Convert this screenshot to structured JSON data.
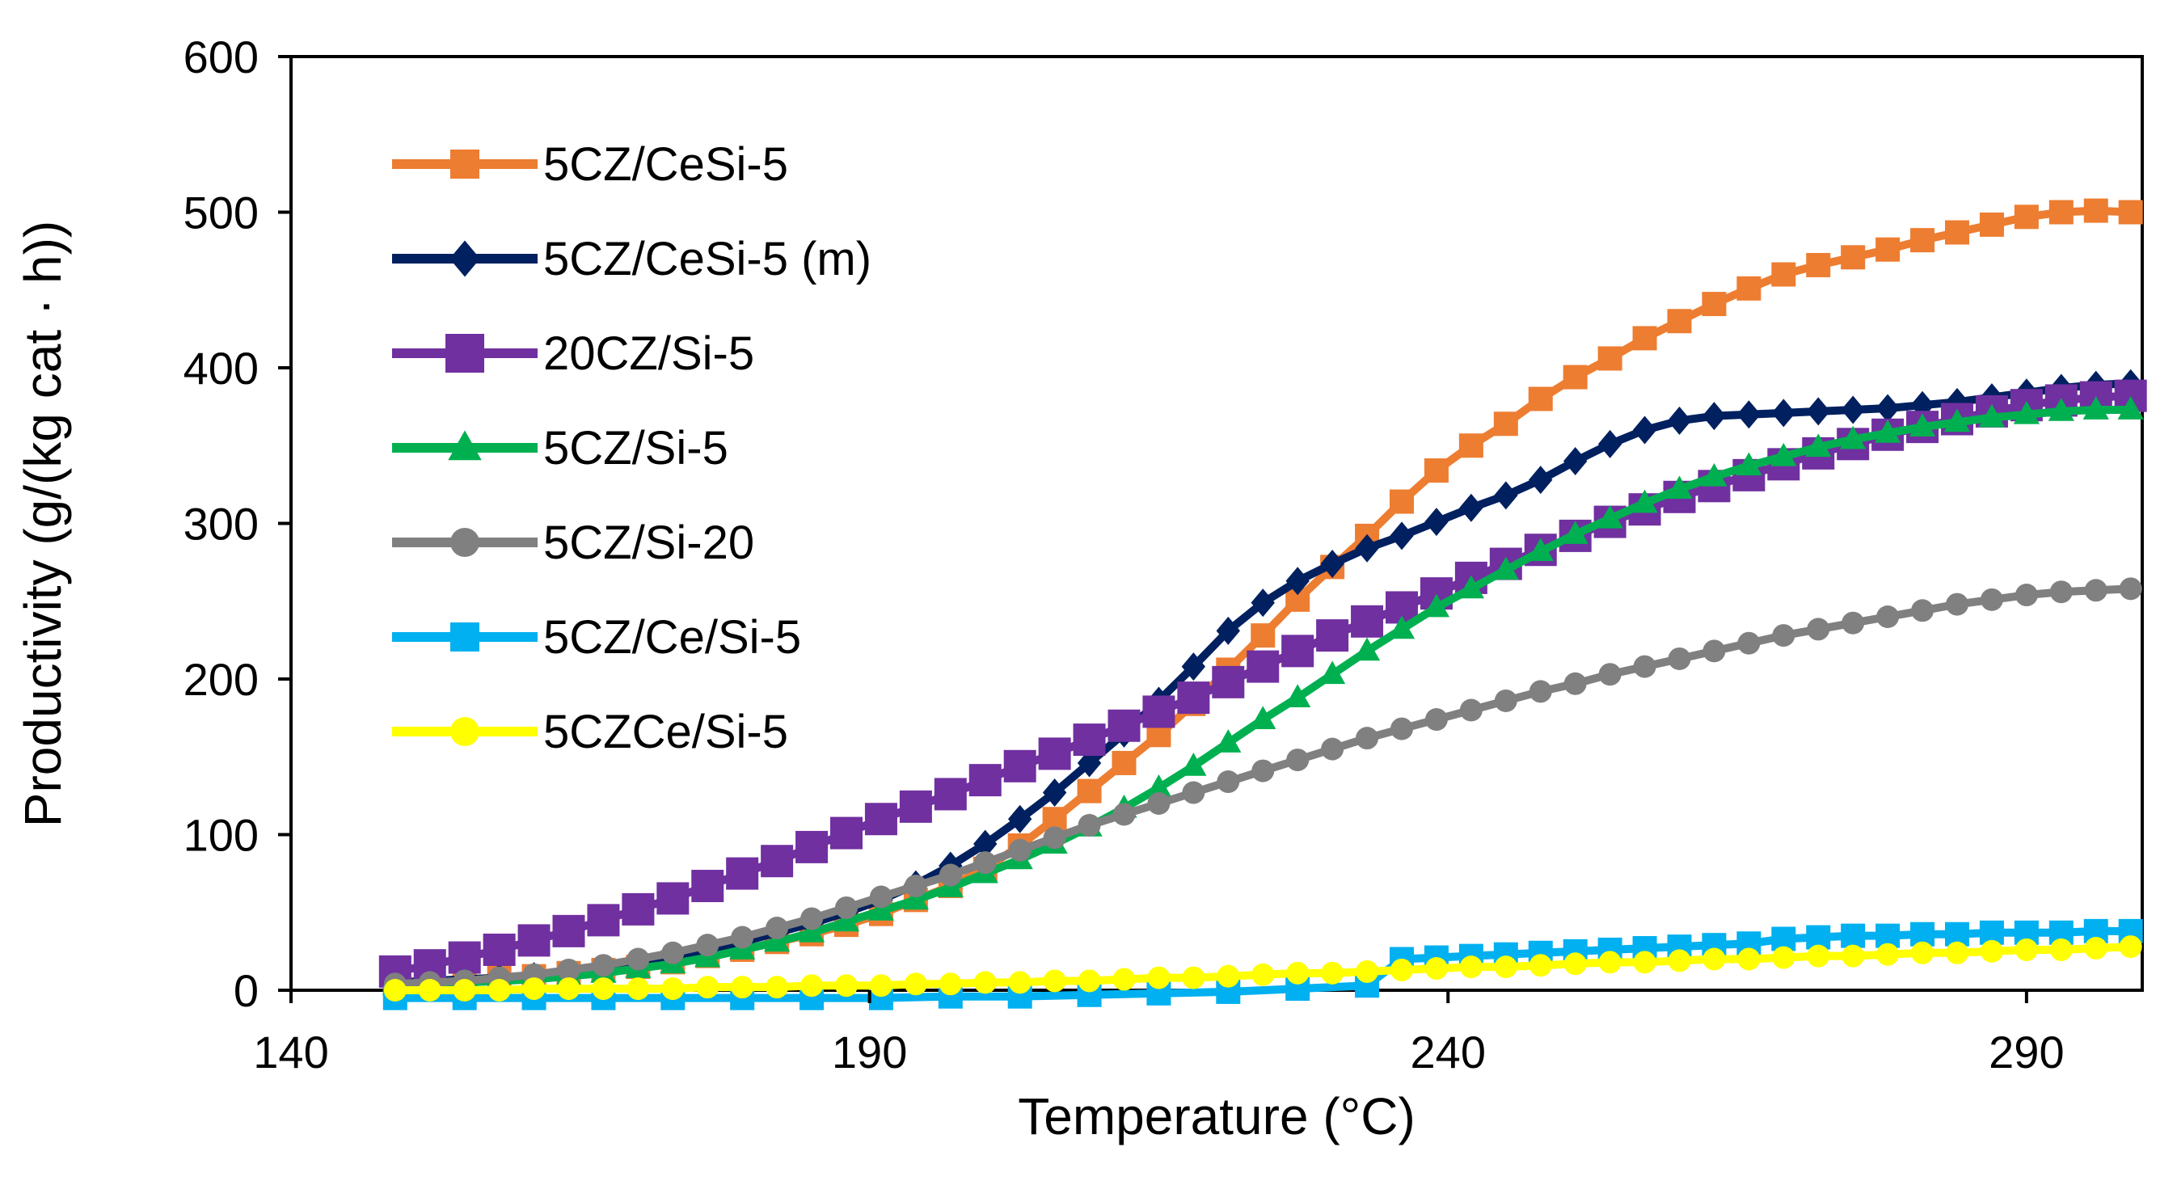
{
  "chart_data": {
    "type": "line",
    "title": "",
    "xlabel": "Temperature (°C)",
    "ylabel": "Productivity (g/(kg cat · h))",
    "xlim": [
      140,
      300
    ],
    "ylim": [
      0,
      600
    ],
    "xticks": [
      140,
      190,
      240,
      290
    ],
    "yticks": [
      0,
      100,
      200,
      300,
      400,
      500,
      600
    ],
    "grid": false,
    "legend_position": "top-left",
    "series": [
      {
        "name": "5CZ/CeSi-5",
        "color": "#ED7D31",
        "marker": "square",
        "x": [
          149,
          152,
          155,
          158,
          161,
          164,
          167,
          170,
          173,
          176,
          179,
          182,
          185,
          188,
          191,
          194,
          197,
          200,
          203,
          206,
          209,
          212,
          215,
          218,
          221,
          224,
          227,
          230,
          233,
          236,
          239,
          242,
          245,
          248,
          251,
          254,
          257,
          260,
          263,
          266,
          269,
          272,
          275,
          278,
          281,
          284,
          287,
          290,
          293,
          296,
          299
        ],
        "y": [
          5,
          6,
          7,
          8,
          9,
          11,
          13,
          15,
          18,
          22,
          26,
          31,
          36,
          42,
          49,
          58,
          67,
          78,
          93,
          110,
          128,
          146,
          164,
          184,
          206,
          228,
          251,
          272,
          292,
          314,
          334,
          350,
          364,
          380,
          394,
          406,
          419,
          430,
          441,
          451,
          460,
          466,
          471,
          476,
          482,
          487,
          492,
          497,
          500,
          501,
          500
        ]
      },
      {
        "name": "5CZ/CeSi-5 (m)",
        "color": "#002060",
        "marker": "diamond",
        "x": [
          149,
          152,
          155,
          158,
          161,
          164,
          167,
          170,
          173,
          176,
          179,
          182,
          185,
          188,
          191,
          194,
          197,
          200,
          203,
          206,
          209,
          212,
          215,
          218,
          221,
          224,
          227,
          230,
          233,
          236,
          239,
          242,
          245,
          248,
          251,
          254,
          257,
          260,
          263,
          266,
          269,
          272,
          275,
          278,
          281,
          284,
          287,
          290,
          293,
          296,
          299
        ],
        "y": [
          5,
          6,
          7,
          8,
          9,
          11,
          14,
          17,
          21,
          26,
          31,
          37,
          43,
          50,
          58,
          68,
          80,
          94,
          110,
          127,
          146,
          165,
          186,
          208,
          231,
          249,
          263,
          274,
          284,
          292,
          301,
          310,
          318,
          328,
          340,
          351,
          360,
          366,
          369,
          370,
          371,
          372,
          373,
          374,
          376,
          378,
          381,
          384,
          387,
          389,
          390
        ]
      },
      {
        "name": "20CZ/Si-5",
        "color": "#7030A0",
        "marker": "square",
        "x": [
          149,
          152,
          155,
          158,
          161,
          164,
          167,
          170,
          173,
          176,
          179,
          182,
          185,
          188,
          191,
          194,
          197,
          200,
          203,
          206,
          209,
          212,
          215,
          218,
          221,
          224,
          227,
          230,
          233,
          236,
          239,
          242,
          245,
          248,
          251,
          254,
          257,
          260,
          263,
          266,
          269,
          272,
          275,
          278,
          281,
          284,
          287,
          290,
          293,
          296,
          299
        ],
        "y": [
          12,
          16,
          21,
          26,
          32,
          38,
          45,
          52,
          59,
          67,
          75,
          83,
          92,
          101,
          110,
          118,
          126,
          135,
          144,
          152,
          161,
          170,
          179,
          188,
          198,
          208,
          218,
          228,
          237,
          246,
          255,
          265,
          274,
          283,
          292,
          301,
          309,
          317,
          324,
          331,
          338,
          345,
          351,
          357,
          362,
          367,
          372,
          376,
          379,
          381,
          382
        ]
      },
      {
        "name": "5CZ/Si-5",
        "color": "#00B050",
        "marker": "triangle",
        "x": [
          149,
          152,
          155,
          158,
          161,
          164,
          167,
          170,
          173,
          176,
          179,
          182,
          185,
          188,
          191,
          194,
          197,
          200,
          203,
          206,
          209,
          212,
          215,
          218,
          221,
          224,
          227,
          230,
          233,
          236,
          239,
          242,
          245,
          248,
          251,
          254,
          257,
          260,
          263,
          266,
          269,
          272,
          275,
          278,
          281,
          284,
          287,
          290,
          293,
          296,
          299
        ],
        "y": [
          3,
          4,
          5,
          6,
          7,
          9,
          11,
          14,
          17,
          21,
          26,
          31,
          37,
          44,
          51,
          58,
          66,
          75,
          84,
          94,
          105,
          117,
          130,
          144,
          159,
          174,
          188,
          203,
          218,
          232,
          246,
          258,
          270,
          282,
          293,
          303,
          313,
          322,
          330,
          337,
          343,
          349,
          354,
          358,
          362,
          365,
          368,
          370,
          372,
          373,
          373
        ]
      },
      {
        "name": "5CZ/Si-20",
        "color": "#808080",
        "marker": "circle",
        "x": [
          149,
          152,
          155,
          158,
          161,
          164,
          167,
          170,
          173,
          176,
          179,
          182,
          185,
          188,
          191,
          194,
          197,
          200,
          203,
          206,
          209,
          212,
          215,
          218,
          221,
          224,
          227,
          230,
          233,
          236,
          239,
          242,
          245,
          248,
          251,
          254,
          257,
          260,
          263,
          266,
          269,
          272,
          275,
          278,
          281,
          284,
          287,
          290,
          293,
          296,
          299
        ],
        "y": [
          4,
          5,
          6,
          8,
          10,
          13,
          16,
          20,
          24,
          29,
          34,
          40,
          46,
          53,
          60,
          67,
          74,
          82,
          90,
          98,
          106,
          113,
          120,
          127,
          134,
          141,
          148,
          155,
          162,
          168,
          174,
          180,
          186,
          192,
          197,
          203,
          208,
          213,
          218,
          223,
          228,
          232,
          236,
          240,
          244,
          248,
          251,
          254,
          256,
          257,
          258
        ]
      },
      {
        "name": "5CZ/Ce/Si-5",
        "color": "#00B0F0",
        "marker": "square",
        "x": [
          149,
          155,
          161,
          167,
          173,
          179,
          185,
          191,
          197,
          203,
          209,
          215,
          221,
          227,
          233,
          236,
          239,
          242,
          245,
          248,
          251,
          254,
          257,
          260,
          263,
          266,
          269,
          272,
          275,
          278,
          281,
          284,
          287,
          290,
          293,
          296,
          299
        ],
        "y": [
          -5,
          -5,
          -5,
          -5,
          -5,
          -5,
          -5,
          -5,
          -4,
          -4,
          -3,
          -2,
          -1,
          1,
          3,
          20,
          21,
          22,
          23,
          24,
          25,
          26,
          27,
          28,
          29,
          30,
          33,
          34,
          35,
          35,
          36,
          36,
          37,
          37,
          37,
          38,
          38
        ]
      },
      {
        "name": "5CZCe/Si-5",
        "color": "#FFFF00",
        "marker": "circle",
        "x": [
          149,
          152,
          155,
          158,
          161,
          164,
          167,
          170,
          173,
          176,
          179,
          182,
          185,
          188,
          191,
          194,
          197,
          200,
          203,
          206,
          209,
          212,
          215,
          218,
          221,
          224,
          227,
          230,
          233,
          236,
          239,
          242,
          245,
          248,
          251,
          254,
          257,
          260,
          263,
          266,
          269,
          272,
          275,
          278,
          281,
          284,
          287,
          290,
          293,
          296,
          299
        ],
        "y": [
          0,
          0,
          0,
          0,
          1,
          1,
          1,
          1,
          1,
          2,
          2,
          2,
          3,
          3,
          3,
          4,
          4,
          5,
          5,
          6,
          6,
          7,
          8,
          8,
          9,
          10,
          11,
          11,
          12,
          13,
          14,
          15,
          15,
          16,
          17,
          18,
          18,
          19,
          20,
          20,
          21,
          22,
          22,
          23,
          24,
          24,
          25,
          26,
          26,
          27,
          28
        ]
      }
    ]
  }
}
